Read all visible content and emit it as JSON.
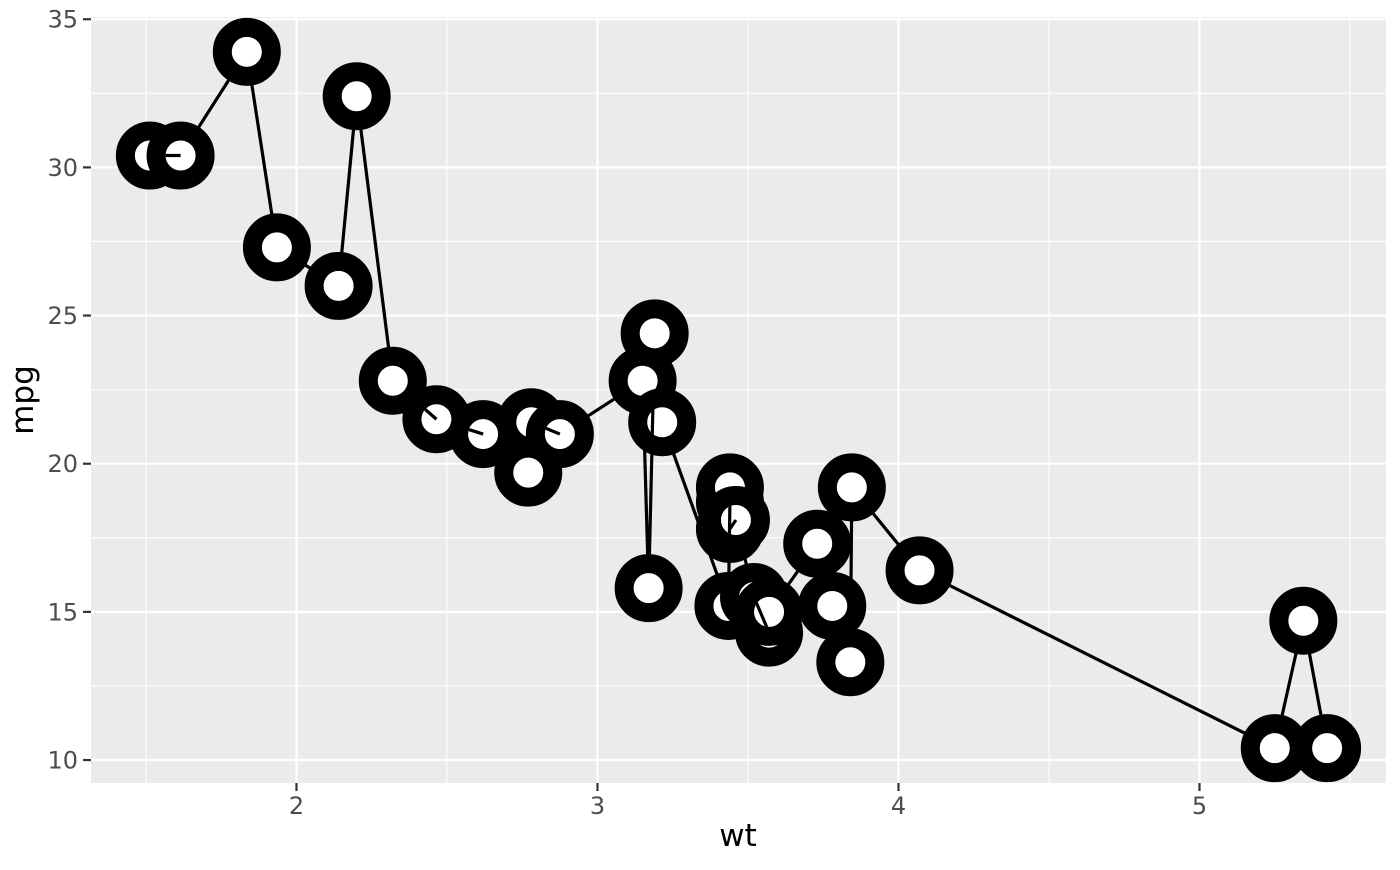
{
  "chart_data": {
    "type": "scatter",
    "geoms": [
      "point",
      "line"
    ],
    "title": "",
    "xlabel": "wt",
    "ylabel": "mpg",
    "xlim": [
      1.3174,
      5.6196
    ],
    "ylim": [
      9.225,
      35.075
    ],
    "x_major_ticks": [
      2,
      3,
      4,
      5
    ],
    "y_major_ticks": [
      10,
      15,
      20,
      25,
      30,
      35
    ],
    "x_minor_gridlines": [
      1.5,
      2.5,
      3.5,
      4.5,
      5.5
    ],
    "y_minor_gridlines": [
      12.5,
      17.5,
      22.5,
      27.5,
      32.5
    ],
    "grid": "major and minor white gridlines on gray panel",
    "legend": "none",
    "line_order": "points connected by line in ascending wt order",
    "points": [
      [
        1.513,
        30.4
      ],
      [
        1.615,
        30.4
      ],
      [
        1.835,
        33.9
      ],
      [
        1.935,
        27.3
      ],
      [
        2.14,
        26.0
      ],
      [
        2.2,
        32.4
      ],
      [
        2.32,
        22.8
      ],
      [
        2.465,
        21.5
      ],
      [
        2.62,
        21.0
      ],
      [
        2.77,
        19.7
      ],
      [
        2.78,
        21.4
      ],
      [
        2.875,
        21.0
      ],
      [
        3.15,
        22.8
      ],
      [
        3.17,
        15.8
      ],
      [
        3.19,
        24.4
      ],
      [
        3.215,
        21.4
      ],
      [
        3.435,
        15.2
      ],
      [
        3.44,
        18.7
      ],
      [
        3.44,
        19.2
      ],
      [
        3.44,
        17.8
      ],
      [
        3.46,
        18.1
      ],
      [
        3.52,
        15.5
      ],
      [
        3.57,
        14.3
      ],
      [
        3.57,
        15.0
      ],
      [
        3.73,
        17.3
      ],
      [
        3.78,
        15.2
      ],
      [
        3.84,
        13.3
      ],
      [
        3.845,
        19.2
      ],
      [
        4.07,
        16.4
      ],
      [
        5.25,
        10.4
      ],
      [
        5.345,
        14.7
      ],
      [
        5.424,
        10.4
      ]
    ],
    "overlay_segments": [
      {
        "from_index": 0,
        "to_index": 1,
        "clip_to_index": 1
      },
      {
        "from_index": 6,
        "to_index": 7,
        "clip_to_index": 7
      },
      {
        "from_index": 7,
        "to_index": 8,
        "clip_to_index": 8
      },
      {
        "from_index": 10,
        "to_index": 11,
        "clip_to_index": 11
      },
      {
        "from_index": 13,
        "to_index": 14,
        "clip_to_index": 15
      },
      {
        "from_index": 16,
        "to_index": 17,
        "clip_to_index": 20
      },
      {
        "from_index": 19,
        "to_index": 20,
        "clip_to_index": 20
      },
      {
        "from_index": 21,
        "to_index": 22,
        "clip_to_index": 23
      }
    ]
  },
  "style": {
    "background": "#FFFFFF",
    "panel_bg": "#EBEBEB",
    "grid_major": "#FFFFFF",
    "grid_minor": "#FFFFFF",
    "tick_mark": "#333333",
    "tick_label": "#4D4D4D",
    "axis_title": "#000000",
    "point_fill": "#FFFFFF",
    "point_stroke": "#000000",
    "line": "#000000"
  }
}
